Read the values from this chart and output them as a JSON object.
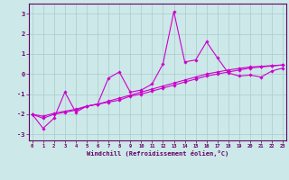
{
  "xlabel": "Windchill (Refroidissement éolien,°C)",
  "bg_color": "#cce8e8",
  "line_color": "#cc00cc",
  "grid_color": "#aacccc",
  "spine_color": "#660066",
  "tick_color": "#660066",
  "x_data": [
    0,
    1,
    2,
    3,
    4,
    5,
    6,
    7,
    8,
    9,
    10,
    11,
    12,
    13,
    14,
    15,
    16,
    17,
    18,
    19,
    20,
    21,
    22,
    23
  ],
  "series1": [
    -2.0,
    -2.7,
    -2.2,
    -0.9,
    -1.9,
    -1.6,
    -1.5,
    -0.2,
    0.1,
    -0.9,
    -0.8,
    -0.5,
    0.5,
    3.1,
    0.6,
    0.7,
    1.6,
    0.8,
    0.05,
    -0.1,
    -0.05,
    -0.15,
    0.15,
    0.3
  ],
  "series2": [
    -2.0,
    -2.2,
    -2.0,
    -1.9,
    -1.8,
    -1.6,
    -1.5,
    -1.4,
    -1.3,
    -1.1,
    -1.0,
    -0.85,
    -0.7,
    -0.55,
    -0.4,
    -0.25,
    -0.1,
    0.0,
    0.1,
    0.2,
    0.3,
    0.35,
    0.4,
    0.45
  ],
  "series3": [
    -2.0,
    -2.1,
    -1.95,
    -1.85,
    -1.75,
    -1.6,
    -1.5,
    -1.35,
    -1.2,
    -1.05,
    -0.9,
    -0.75,
    -0.6,
    -0.45,
    -0.3,
    -0.15,
    0.0,
    0.1,
    0.2,
    0.28,
    0.35,
    0.38,
    0.42,
    0.45
  ],
  "xlim": [
    -0.3,
    23.3
  ],
  "ylim": [
    -3.3,
    3.5
  ],
  "yticks": [
    -3,
    -2,
    -1,
    0,
    1,
    2,
    3
  ],
  "xticks": [
    0,
    1,
    2,
    3,
    4,
    5,
    6,
    7,
    8,
    9,
    10,
    11,
    12,
    13,
    14,
    15,
    16,
    17,
    18,
    19,
    20,
    21,
    22,
    23
  ]
}
